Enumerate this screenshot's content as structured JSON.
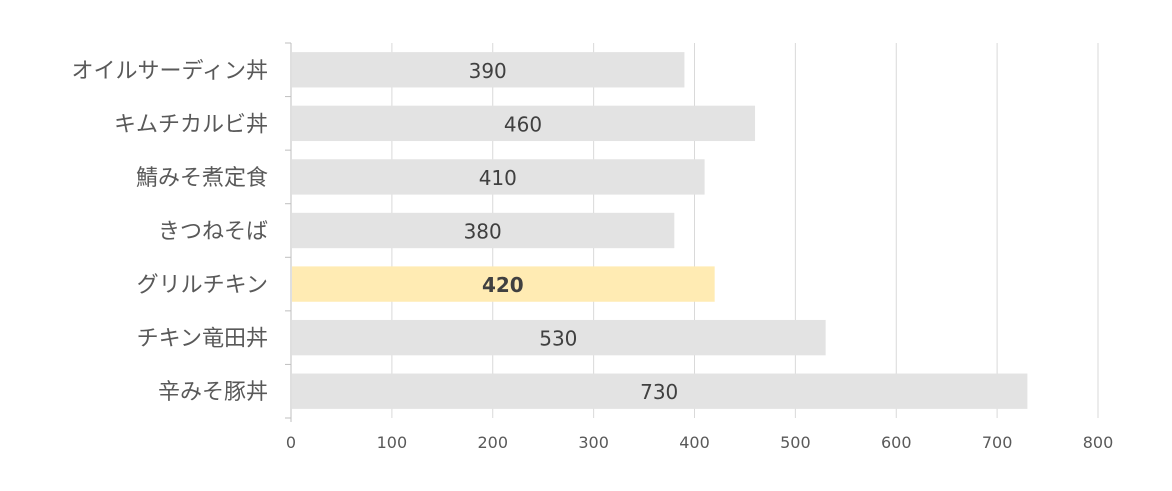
{
  "chart_data": {
    "type": "bar",
    "orientation": "horizontal",
    "categories": [
      "オイルサーディン丼",
      "キムチカルビ丼",
      "鯖みそ煮定食",
      "きつねそば",
      "グリルチキン",
      "チキン竜田丼",
      "辛みそ豚丼"
    ],
    "values": [
      390,
      460,
      410,
      380,
      420,
      530,
      730
    ],
    "highlight_index": 4,
    "xlim": [
      0,
      800
    ],
    "x_ticks": [
      0,
      100,
      200,
      300,
      400,
      500,
      600,
      700,
      800
    ],
    "grid": true,
    "legend": "none",
    "title": "",
    "xlabel": "",
    "ylabel": "",
    "colors": {
      "bar": "#e3e3e3",
      "highlight_bar": "#ffebb3",
      "gridline": "#d9d9d9",
      "axis": "#bfbfbf",
      "label_text": "#595959",
      "data_label_text": "#404040"
    }
  }
}
